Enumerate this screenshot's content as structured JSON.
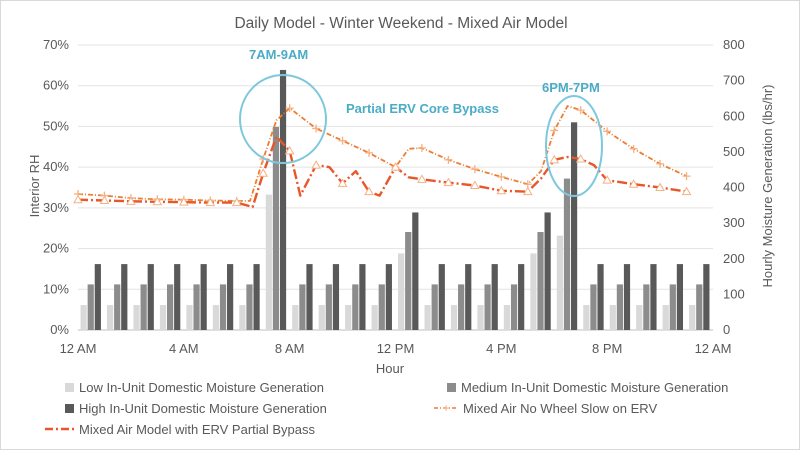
{
  "chart_data": {
    "type": "bar",
    "title": "Daily Model - Winter Weekend - Mixed Air Model",
    "xlabel": "Hour",
    "ylabel": "Interior RH",
    "y2label": "Hourly Moisture Generation (lbs/hr)",
    "ylim": [
      0,
      0.7
    ],
    "y2lim": [
      0,
      800
    ],
    "grid": true,
    "legend_position": "bottom",
    "x_ticks": [
      "12 AM",
      "4 AM",
      "8 AM",
      "12 PM",
      "4 PM",
      "8 PM",
      "12 AM"
    ],
    "y_ticks": [
      "0%",
      "10%",
      "20%",
      "30%",
      "40%",
      "50%",
      "60%",
      "70%"
    ],
    "y2_ticks": [
      "0",
      "100",
      "200",
      "300",
      "400",
      "500",
      "600",
      "700",
      "800"
    ],
    "hours": [
      0,
      1,
      2,
      3,
      4,
      5,
      6,
      7,
      8,
      9,
      10,
      11,
      12,
      13,
      14,
      15,
      16,
      17,
      18,
      19,
      20,
      21,
      22,
      23
    ],
    "bar_series": [
      {
        "name": "Low In-Unit Domestic Moisture Generation",
        "color": "#d9d9d9",
        "values": [
          70,
          70,
          70,
          70,
          70,
          70,
          70,
          380,
          70,
          70,
          70,
          70,
          215,
          70,
          70,
          70,
          70,
          215,
          265,
          70,
          70,
          70,
          70,
          70
        ]
      },
      {
        "name": "Medium In-Unit Domestic Moisture Generation",
        "color": "#8c8c8c",
        "values": [
          128,
          128,
          128,
          128,
          128,
          128,
          128,
          570,
          128,
          128,
          128,
          128,
          275,
          128,
          128,
          128,
          128,
          275,
          425,
          128,
          128,
          128,
          128,
          128
        ]
      },
      {
        "name": "High In-Unit Domestic Moisture Generation",
        "color": "#595959",
        "values": [
          185,
          185,
          185,
          185,
          185,
          185,
          185,
          730,
          185,
          185,
          185,
          185,
          330,
          185,
          185,
          185,
          185,
          330,
          583,
          185,
          185,
          185,
          185,
          185
        ]
      }
    ],
    "line_series": [
      {
        "name": "Mixed Air No Wheel Slow on ERV",
        "color": "#f4b183",
        "dash_color": "#ed7d31",
        "x": [
          0,
          1,
          2,
          3,
          4,
          5,
          6,
          6.5,
          7,
          7.5,
          8,
          9,
          10,
          11,
          12,
          12.5,
          13,
          14,
          15,
          16,
          17,
          17.5,
          18,
          18.5,
          19,
          20,
          21,
          22,
          23
        ],
        "y": [
          0.334,
          0.33,
          0.324,
          0.321,
          0.32,
          0.318,
          0.317,
          0.317,
          0.42,
          0.515,
          0.545,
          0.495,
          0.465,
          0.435,
          0.4,
          0.445,
          0.447,
          0.418,
          0.395,
          0.376,
          0.358,
          0.39,
          0.49,
          0.55,
          0.54,
          0.488,
          0.445,
          0.408,
          0.378
        ]
      },
      {
        "name": "Mixed Air Model with ERV Partial Bypass",
        "color": "#e8562a",
        "x": [
          0,
          1,
          2,
          3,
          4,
          5,
          6,
          6.6,
          7,
          7.5,
          8,
          8.4,
          9,
          9.5,
          10,
          10.5,
          11,
          11.4,
          12,
          12.5,
          13,
          14,
          15,
          16,
          17,
          17.5,
          18,
          18.5,
          19,
          19.5,
          20,
          21,
          22,
          23
        ],
        "y": [
          0.32,
          0.318,
          0.316,
          0.315,
          0.314,
          0.313,
          0.313,
          0.302,
          0.385,
          0.475,
          0.44,
          0.33,
          0.405,
          0.4,
          0.36,
          0.39,
          0.34,
          0.33,
          0.4,
          0.375,
          0.37,
          0.362,
          0.355,
          0.342,
          0.34,
          0.372,
          0.418,
          0.425,
          0.42,
          0.405,
          0.368,
          0.358,
          0.35,
          0.34
        ]
      }
    ],
    "annotations": [
      {
        "text": "7AM-9AM"
      },
      {
        "text": "Partial ERV Core Bypass"
      },
      {
        "text": "6PM-7PM"
      }
    ]
  }
}
